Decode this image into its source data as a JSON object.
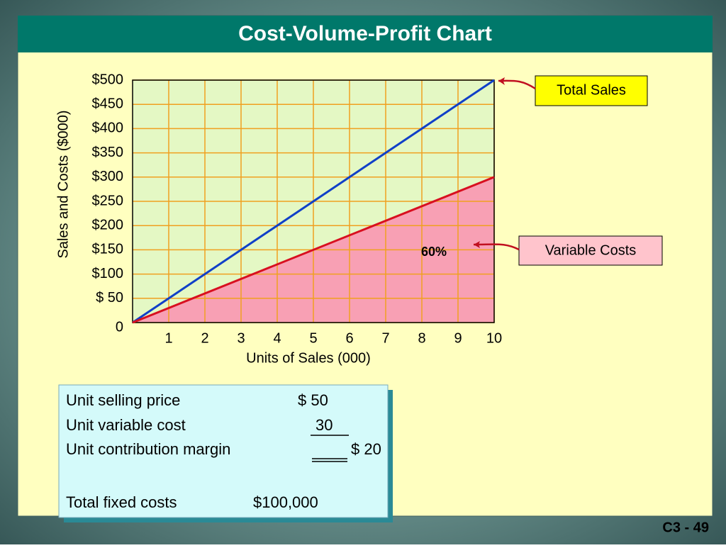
{
  "slide": {
    "title": "Cost-Volume-Profit Chart",
    "footer": "C3 - 49"
  },
  "chart_data": {
    "type": "line",
    "x": [
      0,
      10
    ],
    "xlim": [
      0,
      10
    ],
    "xticks": [
      1,
      2,
      3,
      4,
      5,
      6,
      7,
      8,
      9,
      10
    ],
    "ylim": [
      0,
      500
    ],
    "yticks": [
      0,
      {
        "value": 50,
        "label": "$ 50"
      },
      {
        "value": 100,
        "label": "$100"
      },
      {
        "value": 150,
        "label": "$150"
      },
      {
        "value": 200,
        "label": "$200"
      },
      {
        "value": 250,
        "label": "$250"
      },
      {
        "value": 300,
        "label": "$300"
      },
      {
        "value": 350,
        "label": "$350"
      },
      {
        "value": 400,
        "label": "$400"
      },
      {
        "value": 450,
        "label": "$450"
      },
      {
        "value": 500,
        "label": "$500"
      }
    ],
    "x_label": "Units of Sales (000)",
    "y_label": "Sales and Costs ($000)",
    "grid": true,
    "series": [
      {
        "name": "Total Sales",
        "color": "#1040c8",
        "values": [
          0,
          500
        ]
      },
      {
        "name": "Variable Costs",
        "color": "#d81020",
        "fill": "#f8a0b4",
        "values": [
          0,
          300
        ]
      }
    ],
    "annotation": "60%"
  },
  "info": {
    "rows": [
      [
        "Unit selling price",
        "$ 50"
      ],
      [
        "Unit variable cost",
        "30"
      ],
      [
        "Unit contribution margin",
        "$ 20"
      ],
      [
        "Total fixed costs",
        "$100,000"
      ]
    ]
  }
}
